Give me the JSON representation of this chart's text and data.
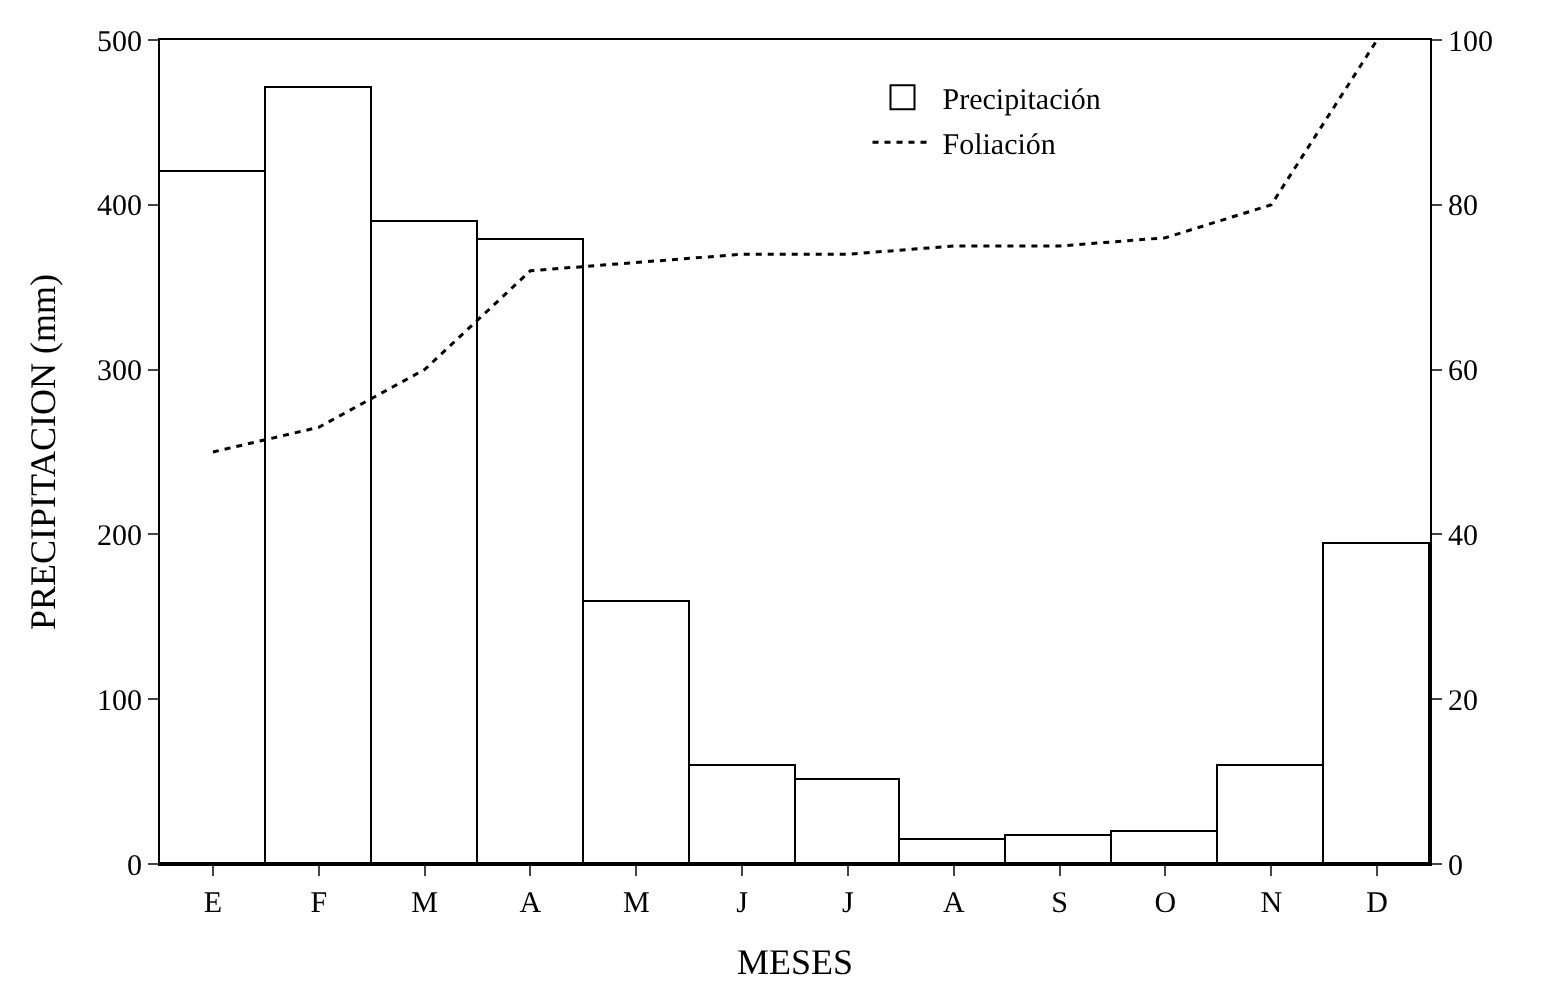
{
  "chart_data": {
    "type": "bar",
    "xlabel": "MESES",
    "ylabel": "PRECIPITACION (mm)",
    "categories": [
      "E",
      "F",
      "M",
      "A",
      "M",
      "J",
      "J",
      "A",
      "S",
      "O",
      "N",
      "D"
    ],
    "series": [
      {
        "name": "Precipitación",
        "color": "#ffffff",
        "values": [
          420,
          471,
          389,
          379,
          159,
          60,
          51,
          14,
          17,
          19,
          60,
          194
        ]
      },
      {
        "name": "Foliación",
        "type": "line",
        "axis": "y2",
        "color": "#000000",
        "line_style": "dotted",
        "values": [
          50,
          53,
          60,
          72,
          73,
          74,
          74,
          75,
          75,
          76,
          80,
          100
        ]
      }
    ],
    "ylim": [
      0,
      500
    ],
    "yticks": [
      0,
      100,
      200,
      300,
      400,
      500
    ],
    "y2lim": [
      0,
      100
    ],
    "y2ticks": [
      0,
      20,
      40,
      60,
      80,
      100
    ],
    "legend": "top right",
    "marker": "none"
  }
}
